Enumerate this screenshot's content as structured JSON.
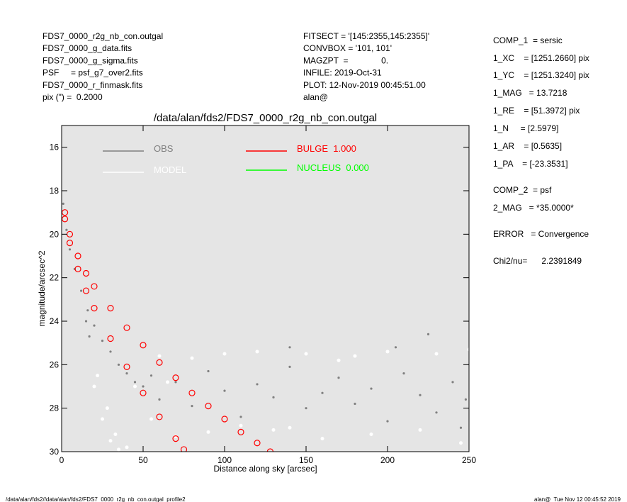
{
  "header": {
    "left": [
      "FDS7_0000_r2g_nb_con.outgal",
      "FDS7_0000_g_data.fits",
      "FDS7_0000_g_sigma.fits",
      "PSF     = psf_g7_over2.fits",
      "FDS7_0000_r_finmask.fits",
      "pix (\") =  0.2000"
    ],
    "middle": [
      "FITSECT = '[145:2355,145:2355]'",
      "CONVBOX = '101, 101'",
      "MAGZPT  =              0.",
      "INFILE: 2019-Oct-31",
      "PLOT: 12-Nov-2019 00:45:51.00",
      "alan@"
    ],
    "right": [
      "COMP_1  = sersic",
      "1_XC    = [1251.2660] pix",
      "1_YC    = [1251.3240] pix",
      "1_MAG   = 13.7218",
      "1_RE    = [51.3972] pix",
      "1_N     = [2.5979]",
      "1_AR    = [0.5635]",
      "1_PA    = [-23.3531]",
      "COMP_2  = psf",
      "2_MAG   = *35.0000*",
      "ERROR   = Convergence",
      "Chi2/nu=      2.2391849"
    ]
  },
  "footer": {
    "left": "/data/alan/fds2//data/alan/fds2/FDS7_0000_r2g_nb_con.outgal_profile2",
    "right": "alan@  Tue Nov 12 00:45:52 2019"
  },
  "chart_data": {
    "type": "scatter",
    "title": "/data/alan/fds2/FDS7_0000_r2g_nb_con.outgal",
    "xlabel": "Distance along sky [arcsec]",
    "ylabel": "magnitude/arcsec^2",
    "xlim": [
      0,
      250
    ],
    "xticks": [
      0,
      50,
      100,
      150,
      200,
      250
    ],
    "ylim": [
      15,
      30
    ],
    "y_inverted": true,
    "yticks": [
      16,
      18,
      20,
      22,
      24,
      26,
      28,
      30
    ],
    "background": "#e5e5e5",
    "series": [
      {
        "name": "MODEL",
        "color": "#ffffff",
        "x": [
          20,
          25,
          30,
          35,
          22,
          28,
          33,
          40,
          60,
          80,
          100,
          120,
          150,
          180,
          200,
          230,
          250,
          70,
          90,
          110,
          130,
          160,
          190,
          220,
          245,
          45,
          55,
          65,
          140,
          170
        ],
        "values": [
          27,
          28.5,
          29.5,
          29.9,
          26.5,
          28,
          29.2,
          29.8,
          25.6,
          25.7,
          25.5,
          25.4,
          25.5,
          25.6,
          25.4,
          25.5,
          25.3,
          29.3,
          29.1,
          28.8,
          29,
          29.4,
          29.2,
          29,
          29.6,
          27,
          28.5,
          26.8,
          28.9,
          25.8
        ]
      },
      {
        "name": "OBS",
        "color": "#808080",
        "x": [
          1,
          3,
          5,
          8,
          12,
          16,
          20,
          25,
          30,
          35,
          40,
          45,
          50,
          55,
          60,
          70,
          80,
          90,
          100,
          110,
          120,
          130,
          140,
          150,
          160,
          170,
          180,
          190,
          200,
          210,
          220,
          230,
          240,
          248,
          15,
          17,
          140,
          205,
          225,
          245
        ],
        "values": [
          18.6,
          19.8,
          20.7,
          21.6,
          22.6,
          23.5,
          24.2,
          24.9,
          25.4,
          26,
          26.4,
          26.8,
          27,
          26.5,
          27.6,
          26.8,
          27.9,
          26.3,
          27.2,
          28.4,
          26.9,
          27.5,
          26.1,
          28,
          27.3,
          26.6,
          27.8,
          27.1,
          28.6,
          26.4,
          27.4,
          28.2,
          26.8,
          27.6,
          24,
          24.7,
          25.2,
          25.2,
          24.6,
          28.9
        ]
      },
      {
        "name": "BULGE  1.000",
        "color": "#ff0000",
        "x": [
          2,
          5,
          10,
          15,
          20,
          30,
          40,
          50,
          60,
          70,
          80,
          90,
          100,
          110,
          120,
          128,
          2,
          5,
          10,
          15,
          20,
          30,
          40,
          50,
          60,
          70,
          75
        ],
        "values": [
          19,
          20,
          21,
          21.8,
          22.4,
          23.4,
          24.3,
          25.1,
          25.9,
          26.6,
          27.3,
          27.9,
          28.5,
          29.1,
          29.6,
          30,
          19.3,
          20.4,
          21.6,
          22.6,
          23.4,
          24.8,
          26.1,
          27.3,
          28.4,
          29.4,
          29.9
        ]
      },
      {
        "name": "NUCLEUS  0.000",
        "color": "#00ff00",
        "x": [],
        "values": []
      }
    ]
  }
}
